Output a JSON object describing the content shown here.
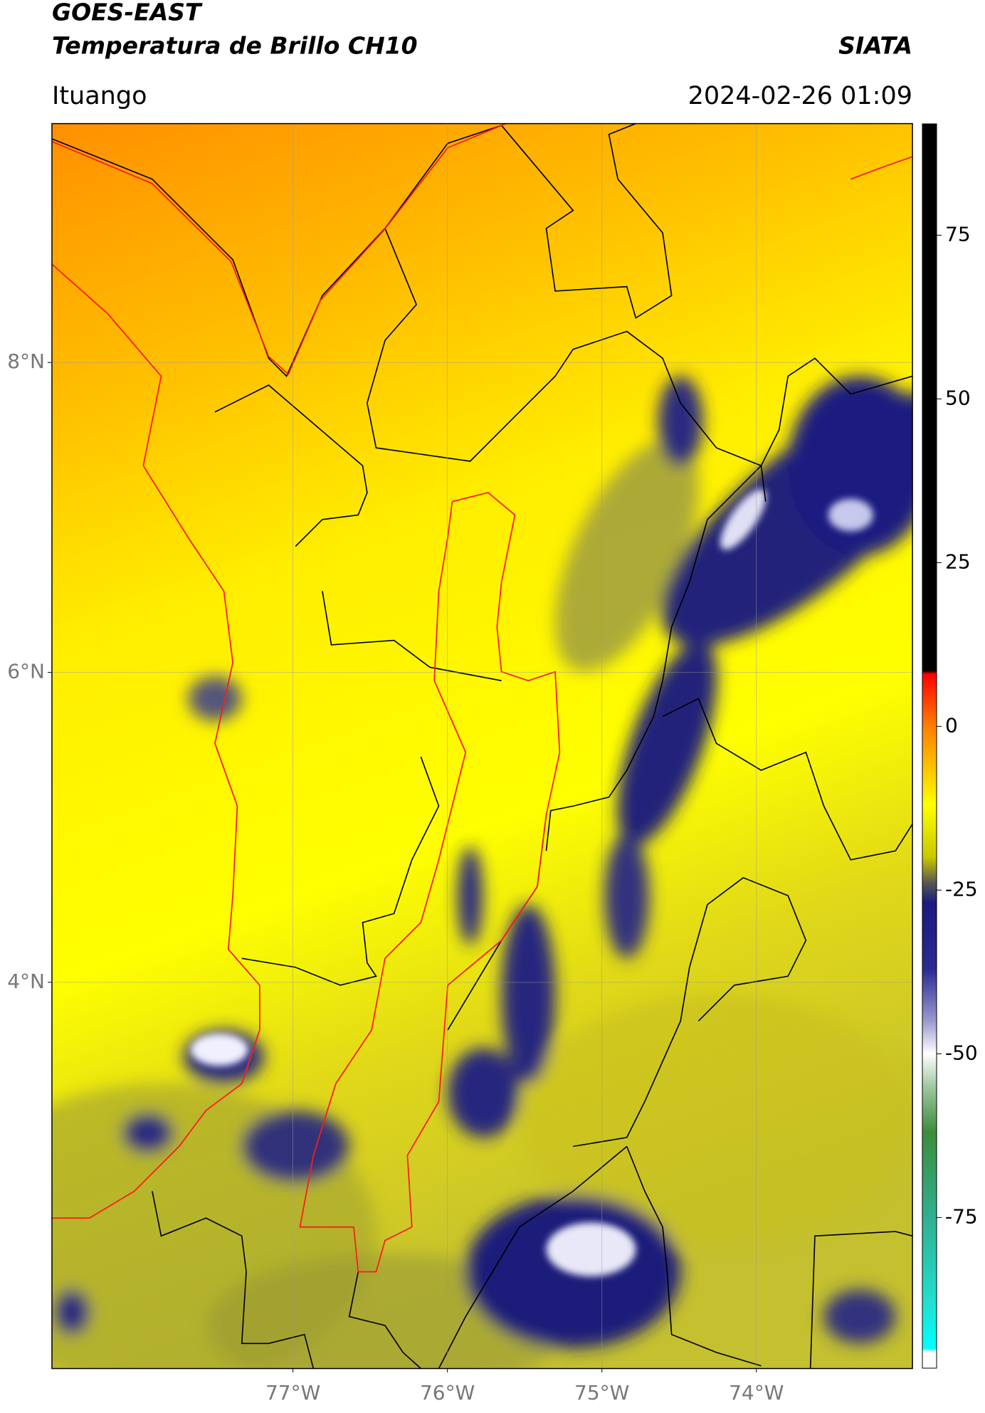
{
  "header": {
    "title": "GOES-EAST",
    "subtitle": "Temperatura de Brillo CH10",
    "brand": "SIATA",
    "location": "Ituango",
    "datetime": "2024-02-26 01:09"
  },
  "map": {
    "xlim": [
      -78.56,
      -72.99
    ],
    "ylim": [
      1.51,
      9.54
    ],
    "xticks": [
      {
        "value": -77,
        "label": "77°W"
      },
      {
        "value": -76,
        "label": "76°W"
      },
      {
        "value": -75,
        "label": "75°W"
      },
      {
        "value": -74,
        "label": "74°W"
      }
    ],
    "yticks": [
      {
        "value": 8,
        "label": "8°N"
      },
      {
        "value": 6,
        "label": "6°N"
      },
      {
        "value": 4,
        "label": "4°N"
      }
    ],
    "grid": true
  },
  "colorbar": {
    "lim": [
      -98,
      92
    ],
    "ticks": [
      75,
      50,
      25,
      0,
      -25,
      -50,
      -75
    ],
    "stops": [
      [
        92,
        "#000000"
      ],
      [
        8.5,
        "#000000"
      ],
      [
        8,
        "#ff0000"
      ],
      [
        0,
        "#ff8000"
      ],
      [
        -12,
        "#ffff00"
      ],
      [
        -20,
        "#c8c800"
      ],
      [
        -24,
        "#555555"
      ],
      [
        -27,
        "#1a1a80"
      ],
      [
        -37,
        "#2a2a90"
      ],
      [
        -45,
        "#9a9ad0"
      ],
      [
        -50,
        "#ffffff"
      ],
      [
        -55,
        "#a0c8a0"
      ],
      [
        -62,
        "#3c8c3c"
      ],
      [
        -75,
        "#30b090"
      ],
      [
        -88,
        "#20e0d0"
      ],
      [
        -95,
        "#00ffff"
      ],
      [
        -95.5,
        "#ffffff"
      ],
      [
        -98,
        "#ffffff"
      ]
    ]
  }
}
